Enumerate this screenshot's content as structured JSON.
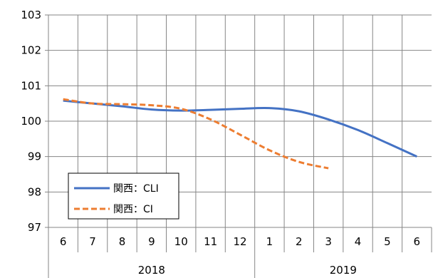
{
  "chart_data": {
    "type": "line",
    "categories": [
      "6",
      "7",
      "8",
      "9",
      "10",
      "11",
      "12",
      "1",
      "2",
      "3",
      "4",
      "5",
      "6"
    ],
    "year_groups": [
      {
        "label": "2018",
        "start": 0,
        "end": 6
      },
      {
        "label": "2019",
        "start": 7,
        "end": 12
      }
    ],
    "ylim": [
      97,
      103
    ],
    "yticks": [
      "97",
      "98",
      "99",
      "100",
      "101",
      "102",
      "103"
    ],
    "grid": true,
    "legend_position": "bottom-left",
    "series": [
      {
        "name": "関西：CLI",
        "color": "#4472C4",
        "style": "solid",
        "values": [
          100.58,
          100.5,
          100.42,
          100.33,
          100.3,
          100.32,
          100.35,
          100.37,
          100.28,
          100.05,
          99.75,
          99.38,
          99.0
        ]
      },
      {
        "name": "関西：CI",
        "color": "#ED7D31",
        "style": "dashed",
        "values": [
          100.62,
          100.5,
          100.48,
          100.45,
          100.35,
          100.05,
          99.62,
          99.18,
          98.85,
          98.67,
          null,
          null,
          null
        ]
      }
    ]
  }
}
